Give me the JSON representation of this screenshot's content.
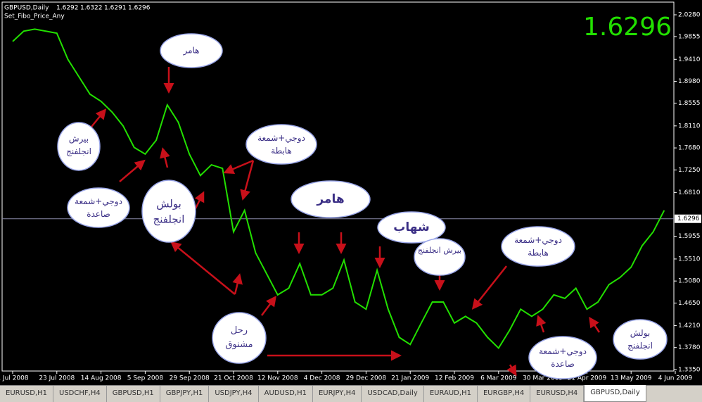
{
  "chart_data": {
    "type": "line",
    "title": "GBPUSD,Daily",
    "ohlc": [
      1.6292,
      1.6322,
      1.6291,
      1.6296
    ],
    "indicator": "Set_Fibo_Price_Any",
    "current_price": 1.6296,
    "categories": [
      "1 Jul 2008",
      null,
      null,
      null,
      "23 Jul 2008",
      null,
      null,
      null,
      "14 Aug 2008",
      null,
      null,
      null,
      "5 Sep 2008",
      null,
      null,
      null,
      "29 Sep 2008",
      null,
      null,
      null,
      "21 Oct 2008",
      null,
      null,
      null,
      "12 Nov 2008",
      null,
      null,
      null,
      "4 Dec 2008",
      null,
      null,
      null,
      "29 Dec 2008",
      null,
      null,
      null,
      "21 Jan 2009",
      null,
      null,
      null,
      "12 Feb 2009",
      null,
      null,
      null,
      "6 Mar 2009",
      null,
      null,
      null,
      "30 Mar 2009",
      null,
      null,
      null,
      "21 Apr 2009",
      null,
      null,
      null,
      "13 May 2009",
      null,
      null,
      null,
      "4 Jun 2009"
    ],
    "series": [
      {
        "name": "GBPUSD",
        "color": "#22e000",
        "values": [
          1.976,
          1.996,
          2.0,
          1.996,
          1.992,
          1.941,
          1.907,
          1.873,
          1.859,
          1.838,
          1.811,
          1.769,
          1.756,
          1.783,
          1.852,
          1.818,
          1.756,
          1.714,
          1.735,
          1.728,
          1.604,
          1.646,
          1.563,
          1.522,
          1.481,
          1.494,
          1.542,
          1.481,
          1.481,
          1.494,
          1.549,
          1.467,
          1.453,
          1.529,
          1.453,
          1.398,
          1.384,
          1.426,
          1.467,
          1.467,
          1.426,
          1.439,
          1.426,
          1.398,
          1.377,
          1.412,
          1.453,
          1.439,
          1.453,
          1.481,
          1.474,
          1.494,
          1.453,
          1.467,
          1.501,
          1.515,
          1.535,
          1.577,
          1.604,
          1.646,
          null
        ]
      }
    ],
    "ylim": [
      1.3322,
      2.0514
    ],
    "yticks": [
      {
        "value": 2.028,
        "label": "2.0280"
      },
      1.9855,
      {
        "value": 1.941,
        "label": "1.9410"
      },
      {
        "value": 1.898,
        "label": "1.8980"
      },
      1.8555,
      {
        "value": 1.811,
        "label": "1.8110"
      },
      {
        "value": 1.768,
        "label": "1.7680"
      },
      {
        "value": 1.725,
        "label": "1.7250"
      },
      {
        "value": 1.681,
        "label": "1.6810"
      },
      1.5955,
      {
        "value": 1.551,
        "label": "1.5510"
      },
      {
        "value": 1.508,
        "label": "1.5080"
      },
      {
        "value": 1.465,
        "label": "1.4650"
      },
      {
        "value": 1.421,
        "label": "1.4210"
      },
      {
        "value": 1.378,
        "label": "1.3780"
      },
      {
        "value": 1.335,
        "label": "1.3350"
      }
    ],
    "annotations": [
      "هامر",
      "بيرش انجلفنج",
      "دوجي+شمعة صاعدة",
      "بولش",
      "انجلفنج",
      "دوجي+شمعة هابطة",
      "هامر",
      "شهاب",
      "بيرش انجلفنج",
      "دوجي+شمعة هابطة",
      "رحل مشنوق",
      "دوجي+شمعة صاعدة",
      "بولش انجلفنج"
    ]
  },
  "tabs": [
    "EURUSD,H1",
    "USDCHF,H4",
    "GBPUSD,H1",
    "GBPJPY,H1",
    "USDJPY,H4",
    "AUDUSD,H1",
    "EURJPY,H4",
    "USDCAD,Daily",
    "EURAUD,H1",
    "EURGBP,H4",
    "EURUSD,H4",
    "GBPUSD,Daily"
  ]
}
